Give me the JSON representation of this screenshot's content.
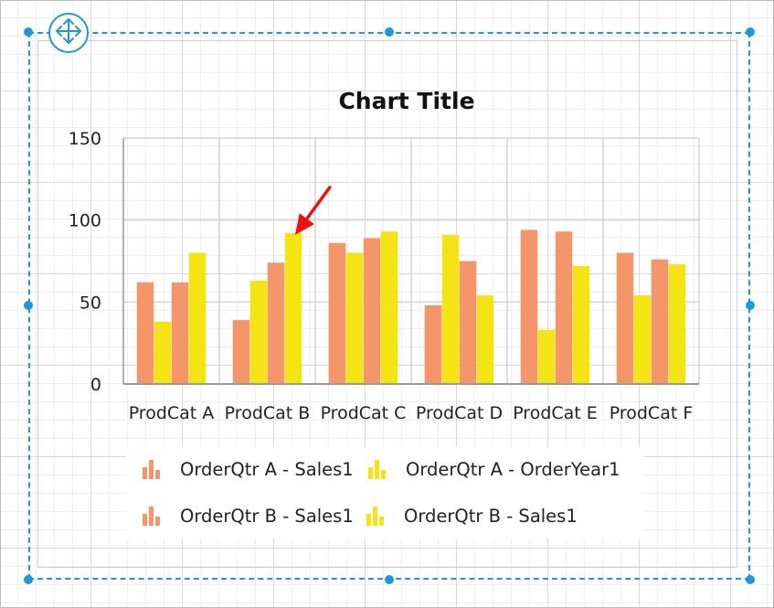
{
  "chart_data": {
    "type": "bar",
    "title": "Chart Title",
    "categories": [
      "ProdCat A",
      "ProdCat B",
      "ProdCat C",
      "ProdCat D",
      "ProdCat E",
      "ProdCat F"
    ],
    "series": [
      {
        "name": "OrderQtr A - Sales1",
        "color": "#f4956a",
        "values": [
          62,
          39,
          86,
          48,
          94,
          80
        ]
      },
      {
        "name": "OrderQtr A - OrderYear1",
        "color": "#f5e414",
        "values": [
          38,
          63,
          80,
          91,
          33,
          54
        ]
      },
      {
        "name": "OrderQtr B - Sales1",
        "color": "#f4956a",
        "values": [
          62,
          74,
          89,
          75,
          93,
          76
        ]
      },
      {
        "name": "OrderQtr B - Sales1",
        "color": "#f5e414",
        "values": [
          80,
          92,
          93,
          54,
          72,
          73
        ]
      }
    ],
    "ylim": [
      0,
      150
    ],
    "yticks": [
      0,
      50,
      100,
      150
    ],
    "grid": true,
    "legend_position": "bottom",
    "annotation": {
      "type": "arrow",
      "color": "#ee1111",
      "target_category": "ProdCat B",
      "target_series_index": 3
    }
  },
  "colors": {
    "selection": "#1f97d8",
    "axis": "#999999",
    "gridline": "#d4d4d4"
  },
  "icons": {
    "move_handle": "move-arrows-icon",
    "legend_symbol": "bar-chart-icon"
  }
}
